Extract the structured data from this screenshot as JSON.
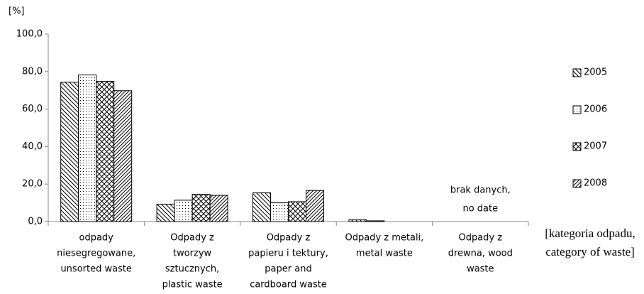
{
  "chart_data": {
    "type": "bar",
    "ylabel": "[%]",
    "xlabel": [
      "[kategoria odpadu,",
      "category of waste]"
    ],
    "categories": [
      [
        "odpady",
        "niesegregowane,",
        "unsorted waste"
      ],
      [
        "Odpady z",
        "tworzyw",
        "sztucznych,",
        "plastic waste"
      ],
      [
        "Odpady z",
        "papieru i tektury,",
        "paper and",
        "cardboard waste"
      ],
      [
        "Odpady z metali,",
        "metal waste"
      ],
      [
        "Odpady z",
        "drewna, wood",
        "waste"
      ]
    ],
    "series": [
      {
        "name": "2005",
        "color": "#000000",
        "pattern": "hatch-back",
        "values": [
          74.3,
          9.3,
          15.3,
          0.9,
          null
        ]
      },
      {
        "name": "2006",
        "color": "#000000",
        "pattern": "dots",
        "values": [
          78.2,
          11.4,
          10.0,
          0.4,
          null
        ]
      },
      {
        "name": "2007",
        "color": "#000000",
        "pattern": "cross",
        "values": [
          74.8,
          14.6,
          10.6,
          null,
          null
        ]
      },
      {
        "name": "2008",
        "color": "#000000",
        "pattern": "hatch-fwd",
        "values": [
          69.8,
          14.0,
          16.6,
          null,
          null
        ]
      }
    ],
    "annotation": [
      "brak danych,",
      "no date"
    ],
    "ylim": [
      0,
      100
    ],
    "yticks": [
      {
        "value": 0,
        "label": "0,0"
      },
      {
        "value": 20,
        "label": "20,0"
      },
      {
        "value": 40,
        "label": "40,0"
      },
      {
        "value": 60,
        "label": "60,0"
      },
      {
        "value": 80,
        "label": "80,0"
      },
      {
        "value": 100,
        "label": "100,0"
      }
    ],
    "grid": false,
    "legend": "right"
  }
}
